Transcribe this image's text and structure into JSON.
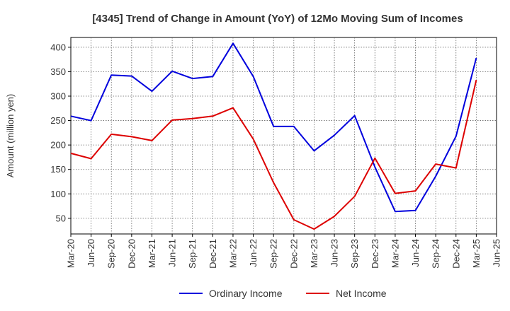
{
  "chart_data": {
    "type": "line",
    "title": "[4345]  Trend of Change in Amount (YoY) of 12Mo Moving Sum of Incomes",
    "ylabel": "Amount (million yen)",
    "xlabel": "",
    "x": [
      "Mar-20",
      "Jun-20",
      "Sep-20",
      "Dec-20",
      "Mar-21",
      "Jun-21",
      "Sep-21",
      "Dec-21",
      "Mar-22",
      "Jun-22",
      "Sep-22",
      "Dec-22",
      "Mar-23",
      "Jun-23",
      "Sep-23",
      "Dec-23",
      "Mar-24",
      "Jun-24",
      "Sep-24",
      "Dec-24",
      "Mar-25",
      "Jun-25"
    ],
    "yticks": [
      50,
      100,
      150,
      200,
      250,
      300,
      350,
      400
    ],
    "ylim": [
      18,
      420
    ],
    "grid": true,
    "legend_position": "bottom",
    "series": [
      {
        "name": "Ordinary Income",
        "color": "#0000dd",
        "values": [
          259,
          250,
          343,
          341,
          310,
          351,
          336,
          340,
          408,
          340,
          238,
          238,
          188,
          220,
          260,
          155,
          64,
          66,
          136,
          218,
          378,
          null
        ]
      },
      {
        "name": "Net Income",
        "color": "#dd0000",
        "values": [
          183,
          172,
          222,
          217,
          209,
          251,
          254,
          259,
          276,
          212,
          123,
          47,
          28,
          54,
          95,
          173,
          101,
          106,
          161,
          153,
          333,
          null
        ]
      }
    ]
  }
}
